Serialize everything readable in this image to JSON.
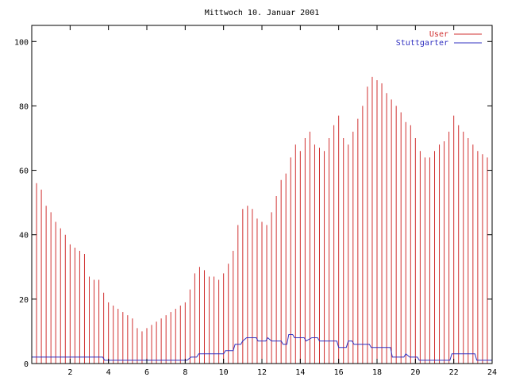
{
  "chart_data": {
    "type": "bar",
    "title": "Mittwoch 10. Januar 2001",
    "xlabel": "",
    "ylabel": "",
    "xlim": [
      0,
      24
    ],
    "ylim": [
      0,
      105
    ],
    "x_ticks": [
      "2",
      "4",
      "6",
      "8",
      "10",
      "12",
      "14",
      "16",
      "18",
      "20",
      "22",
      "24"
    ],
    "y_ticks": [
      "0",
      "20",
      "40",
      "60",
      "80",
      "100"
    ],
    "legend_position": "top-right",
    "grid": false,
    "series": [
      {
        "name": "User",
        "style": "impulses",
        "color": "#d03030",
        "points": [
          [
            0.0,
            47
          ],
          [
            0.25,
            56
          ],
          [
            0.5,
            54
          ],
          [
            0.75,
            49
          ],
          [
            1.0,
            47
          ],
          [
            1.25,
            44
          ],
          [
            1.5,
            42
          ],
          [
            1.75,
            40
          ],
          [
            2.0,
            37
          ],
          [
            2.25,
            36
          ],
          [
            2.5,
            35
          ],
          [
            2.75,
            34
          ],
          [
            3.0,
            27
          ],
          [
            3.25,
            26
          ],
          [
            3.5,
            26
          ],
          [
            3.75,
            22
          ],
          [
            4.0,
            19
          ],
          [
            4.25,
            18
          ],
          [
            4.5,
            17
          ],
          [
            4.75,
            16
          ],
          [
            5.0,
            15
          ],
          [
            5.25,
            14
          ],
          [
            5.5,
            11
          ],
          [
            5.75,
            10
          ],
          [
            6.0,
            11
          ],
          [
            6.25,
            12
          ],
          [
            6.5,
            13
          ],
          [
            6.75,
            14
          ],
          [
            7.0,
            15
          ],
          [
            7.25,
            16
          ],
          [
            7.5,
            17
          ],
          [
            7.75,
            18
          ],
          [
            8.0,
            19
          ],
          [
            8.25,
            23
          ],
          [
            8.5,
            28
          ],
          [
            8.75,
            30
          ],
          [
            9.0,
            29
          ],
          [
            9.25,
            27
          ],
          [
            9.5,
            27
          ],
          [
            9.75,
            26
          ],
          [
            10.0,
            28
          ],
          [
            10.25,
            31
          ],
          [
            10.5,
            35
          ],
          [
            10.75,
            43
          ],
          [
            11.0,
            48
          ],
          [
            11.25,
            49
          ],
          [
            11.5,
            48
          ],
          [
            11.75,
            45
          ],
          [
            12.0,
            44
          ],
          [
            12.25,
            43
          ],
          [
            12.5,
            47
          ],
          [
            12.75,
            52
          ],
          [
            13.0,
            57
          ],
          [
            13.25,
            59
          ],
          [
            13.5,
            64
          ],
          [
            13.75,
            68
          ],
          [
            14.0,
            66
          ],
          [
            14.25,
            70
          ],
          [
            14.5,
            72
          ],
          [
            14.75,
            68
          ],
          [
            15.0,
            67
          ],
          [
            15.25,
            66
          ],
          [
            15.5,
            70
          ],
          [
            15.75,
            74
          ],
          [
            16.0,
            77
          ],
          [
            16.25,
            70
          ],
          [
            16.5,
            68
          ],
          [
            16.75,
            72
          ],
          [
            17.0,
            76
          ],
          [
            17.25,
            80
          ],
          [
            17.5,
            86
          ],
          [
            17.75,
            89
          ],
          [
            18.0,
            88
          ],
          [
            18.25,
            87
          ],
          [
            18.5,
            84
          ],
          [
            18.75,
            82
          ],
          [
            19.0,
            80
          ],
          [
            19.25,
            78
          ],
          [
            19.5,
            75
          ],
          [
            19.75,
            74
          ],
          [
            20.0,
            70
          ],
          [
            20.25,
            66
          ],
          [
            20.5,
            64
          ],
          [
            20.75,
            64
          ],
          [
            21.0,
            66
          ],
          [
            21.25,
            68
          ],
          [
            21.5,
            69
          ],
          [
            21.75,
            72
          ],
          [
            22.0,
            77
          ],
          [
            22.25,
            74
          ],
          [
            22.5,
            72
          ],
          [
            22.75,
            70
          ],
          [
            23.0,
            68
          ],
          [
            23.25,
            66
          ],
          [
            23.5,
            65
          ],
          [
            23.75,
            64
          ],
          [
            24.0,
            64
          ]
        ]
      },
      {
        "name": "Stuttgarter",
        "style": "lines",
        "color": "#3030c0",
        "points": [
          [
            0.0,
            2
          ],
          [
            3.7,
            2
          ],
          [
            3.8,
            1
          ],
          [
            8.1,
            1
          ],
          [
            8.3,
            2
          ],
          [
            8.6,
            2
          ],
          [
            8.7,
            3
          ],
          [
            10.0,
            3
          ],
          [
            10.1,
            4
          ],
          [
            10.5,
            4
          ],
          [
            10.6,
            6
          ],
          [
            10.9,
            6
          ],
          [
            11.0,
            7
          ],
          [
            11.2,
            8
          ],
          [
            11.7,
            8
          ],
          [
            11.8,
            7
          ],
          [
            12.2,
            7
          ],
          [
            12.3,
            8
          ],
          [
            12.5,
            7
          ],
          [
            13.0,
            7
          ],
          [
            13.1,
            6
          ],
          [
            13.3,
            6
          ],
          [
            13.4,
            9
          ],
          [
            13.6,
            9
          ],
          [
            13.7,
            8
          ],
          [
            14.2,
            8
          ],
          [
            14.3,
            7
          ],
          [
            14.6,
            8
          ],
          [
            14.9,
            8
          ],
          [
            15.0,
            7
          ],
          [
            15.9,
            7
          ],
          [
            16.0,
            5
          ],
          [
            16.4,
            5
          ],
          [
            16.5,
            7
          ],
          [
            16.7,
            7
          ],
          [
            16.8,
            6
          ],
          [
            17.6,
            6
          ],
          [
            17.7,
            5
          ],
          [
            18.7,
            5
          ],
          [
            18.8,
            2
          ],
          [
            19.4,
            2
          ],
          [
            19.5,
            3
          ],
          [
            19.7,
            2
          ],
          [
            20.1,
            2
          ],
          [
            20.2,
            1
          ],
          [
            21.8,
            1
          ],
          [
            21.9,
            3
          ],
          [
            23.1,
            3
          ],
          [
            23.2,
            1
          ],
          [
            24.0,
            1
          ]
        ]
      }
    ]
  }
}
